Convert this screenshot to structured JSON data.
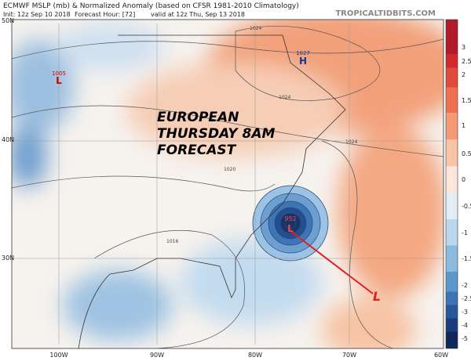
{
  "header": {
    "title": "ECMWF MSLP (mb) & Normalized Anomaly (based on CFSR 1981-2010 Climatology)",
    "init": "Init: 12z Sep 10 2018",
    "forecast_hour": "Forecast Hour: [72]",
    "valid": "valid at 12z Thu, Sep 13 2018",
    "site": "TROPICALTIDBITS.COM"
  },
  "overlay": {
    "lines": [
      "EUROPEAN",
      "THURSDAY 8AM",
      "FORECAST"
    ]
  },
  "pressure_centers": [
    {
      "value": "1005",
      "letter": "L"
    },
    {
      "value": "1027",
      "letter": "H"
    },
    {
      "value": "952",
      "letter": "L"
    }
  ],
  "forecast_low": "L",
  "isobar_labels": [
    "1024",
    "1024",
    "1024",
    "1020",
    "1016"
  ],
  "lat_labels": [
    "50N",
    "40N",
    "30N"
  ],
  "lon_labels": [
    "100W",
    "90W",
    "80W",
    "70W",
    "60W"
  ],
  "colorbar_labels": [
    "3",
    "2.5",
    "2",
    "1.5",
    "1",
    "0.5",
    "0",
    "-0.5",
    "-1",
    "-1.5",
    "-2",
    "-2.5",
    "-3",
    "-4",
    "-5"
  ]
}
